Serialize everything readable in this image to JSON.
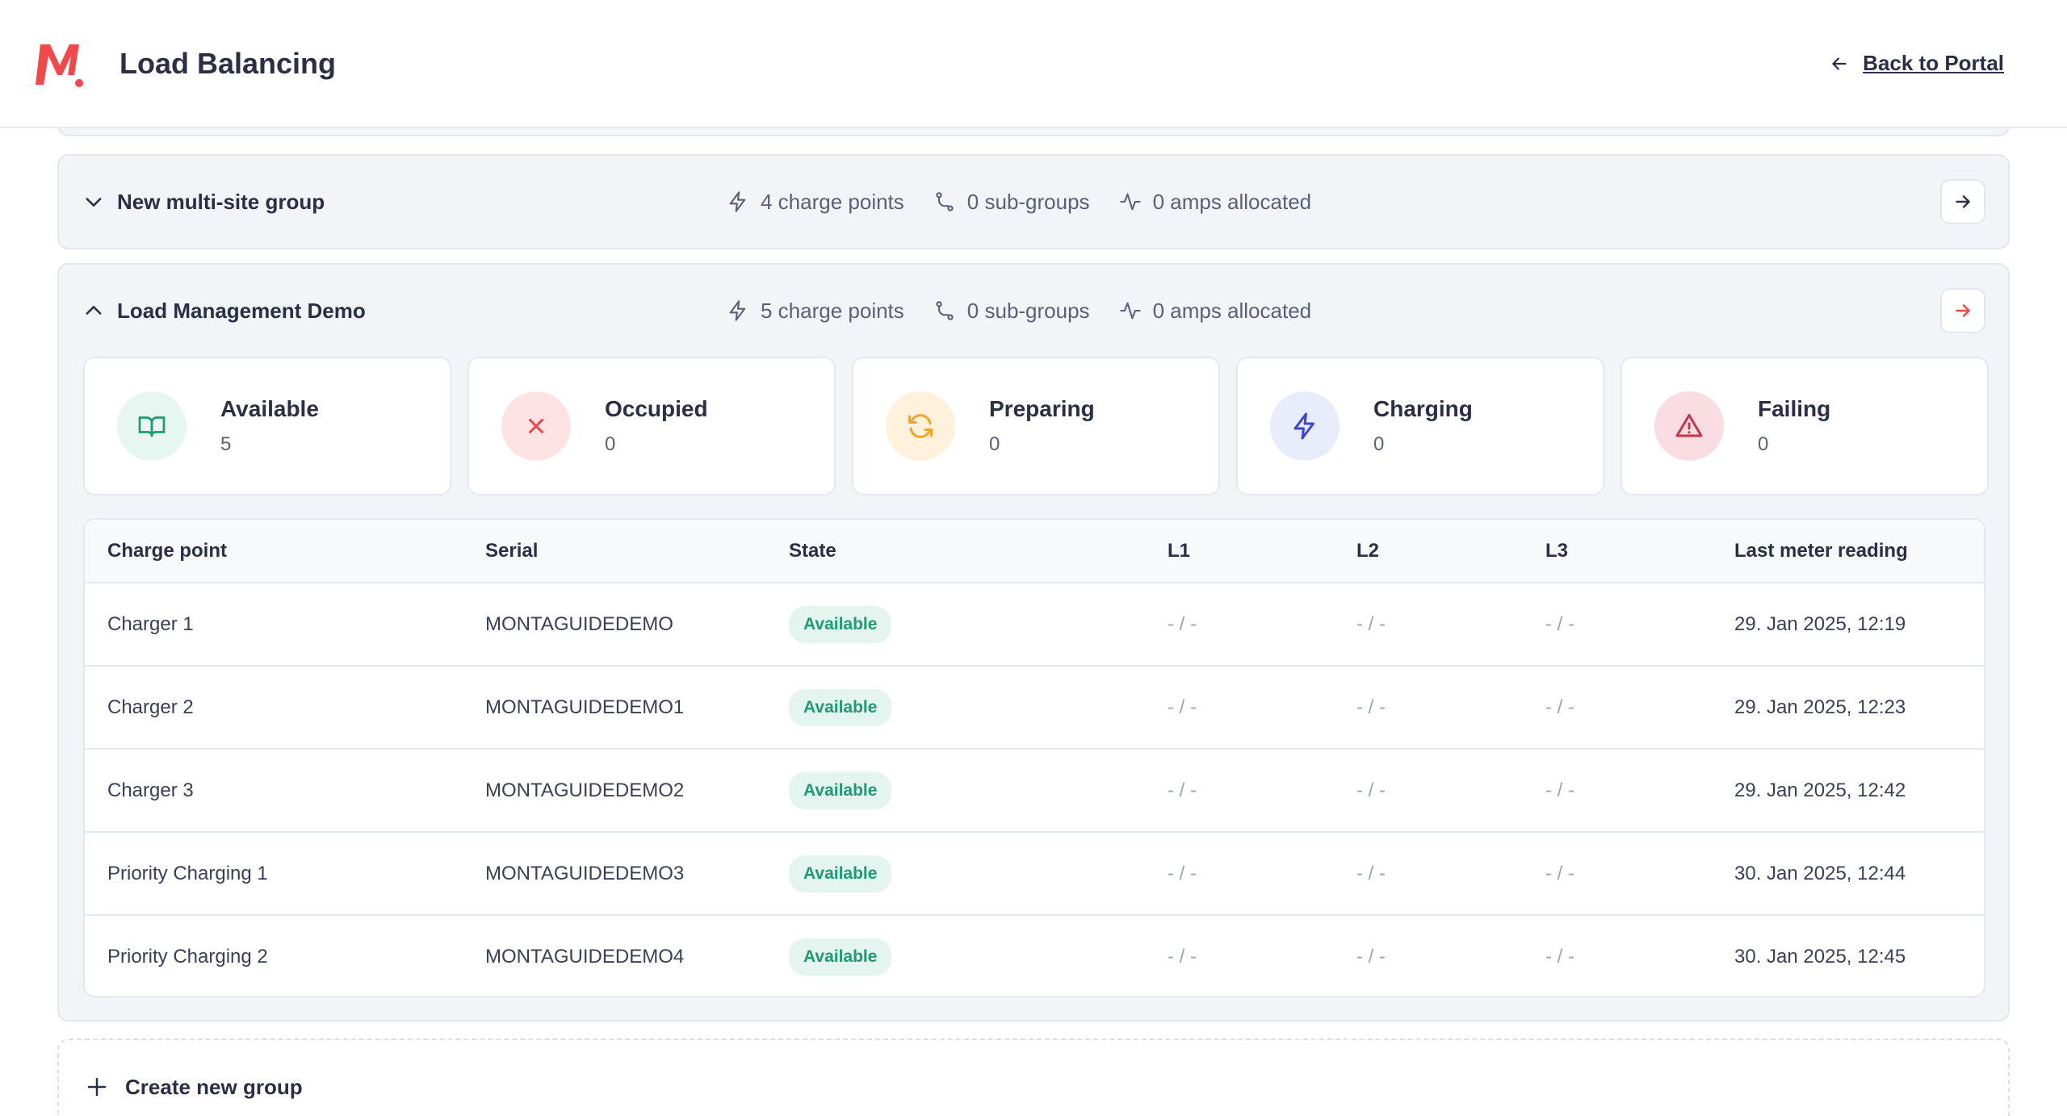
{
  "header": {
    "title": "Load Balancing",
    "back_label": "Back to Portal",
    "logo_color": "#f2484a"
  },
  "groups": [
    {
      "name": "New multi-site group",
      "expanded": false,
      "charge_points": "4 charge points",
      "sub_groups": "0 sub-groups",
      "amps": "0 amps allocated"
    },
    {
      "name": "Load Management Demo",
      "expanded": true,
      "charge_points": "5 charge points",
      "sub_groups": "0 sub-groups",
      "amps": "0 amps allocated"
    }
  ],
  "status_cards": [
    {
      "label": "Available",
      "count": "5",
      "icon": "book-open-icon",
      "bg": "#e6f6f0",
      "color": "#1f9a72"
    },
    {
      "label": "Occupied",
      "count": "0",
      "icon": "x-icon",
      "bg": "#fde3e3",
      "color": "#ef4444"
    },
    {
      "label": "Preparing",
      "count": "0",
      "icon": "refresh-icon",
      "bg": "#fff1dc",
      "color": "#f5a524"
    },
    {
      "label": "Charging",
      "count": "0",
      "icon": "bolt-icon",
      "bg": "#e9ecfb",
      "color": "#3b46d9"
    },
    {
      "label": "Failing",
      "count": "0",
      "icon": "warning-icon",
      "bg": "#f9dde2",
      "color": "#c7344a"
    }
  ],
  "table": {
    "headers": [
      "Charge point",
      "Serial",
      "State",
      "L1",
      "L2",
      "L3",
      "Last meter reading"
    ],
    "rows": [
      {
        "name": "Charger 1",
        "serial": "MONTAGUIDEDEMO",
        "state": "Available",
        "l1": "- / -",
        "l2": "- / -",
        "l3": "- / -",
        "reading": "29. Jan 2025, 12:19"
      },
      {
        "name": "Charger 2",
        "serial": "MONTAGUIDEDEMO1",
        "state": "Available",
        "l1": "- / -",
        "l2": "- / -",
        "l3": "- / -",
        "reading": "29. Jan 2025, 12:23"
      },
      {
        "name": "Charger 3",
        "serial": "MONTAGUIDEDEMO2",
        "state": "Available",
        "l1": "- / -",
        "l2": "- / -",
        "l3": "- / -",
        "reading": "29. Jan 2025, 12:42"
      },
      {
        "name": "Priority Charging 1",
        "serial": "MONTAGUIDEDEMO3",
        "state": "Available",
        "l1": "- / -",
        "l2": "- / -",
        "l3": "- / -",
        "reading": "30. Jan 2025, 12:44"
      },
      {
        "name": "Priority Charging 2",
        "serial": "MONTAGUIDEDEMO4",
        "state": "Available",
        "l1": "- / -",
        "l2": "- / -",
        "l3": "- / -",
        "reading": "30. Jan 2025, 12:45"
      }
    ]
  },
  "create": {
    "label": "Create new group"
  }
}
